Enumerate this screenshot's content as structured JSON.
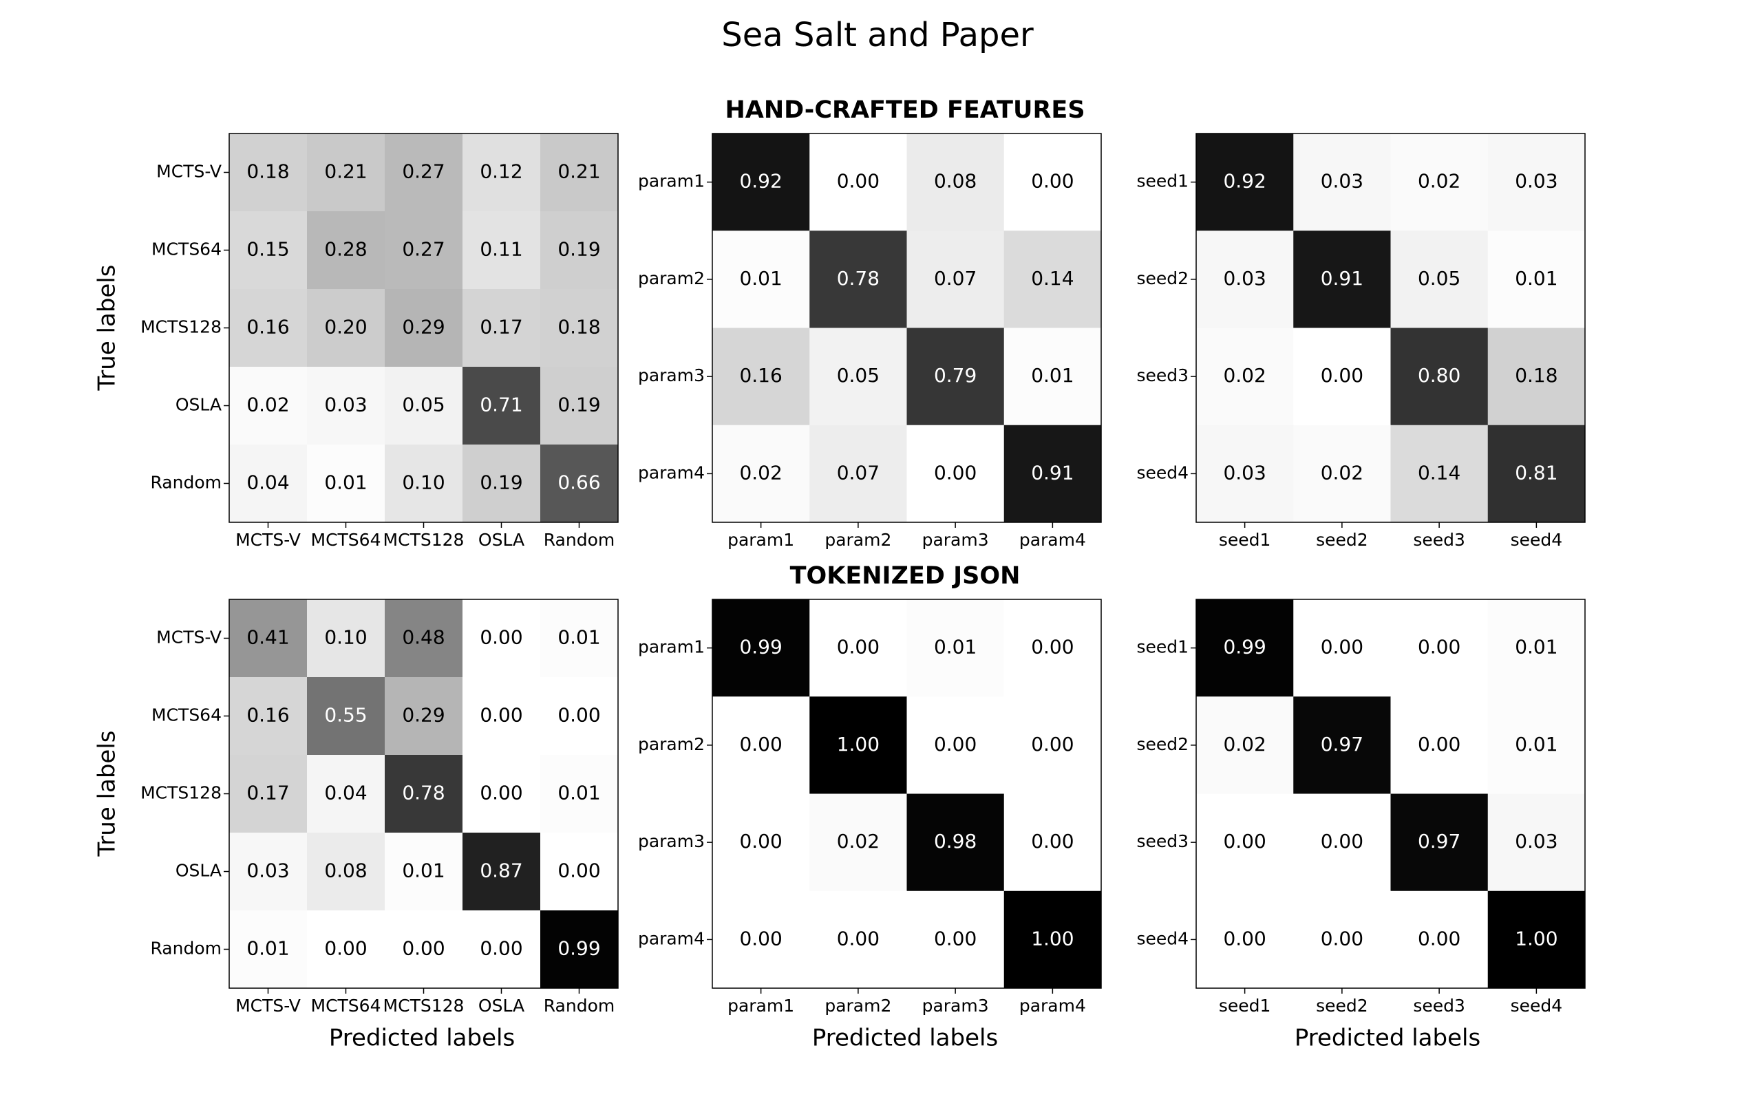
{
  "figure": {
    "title": "Sea Salt and Paper",
    "row_titles": [
      "HAND-CRAFTED FEATURES",
      "TOKENIZED JSON"
    ],
    "xlabel": "Predicted labels",
    "ylabel": "True labels"
  },
  "chart_data": [
    {
      "type": "heatmap",
      "row": 0,
      "col": 0,
      "colormap": "greys",
      "x_labels": [
        "MCTS-V",
        "MCTS64",
        "MCTS128",
        "OSLA",
        "Random"
      ],
      "y_labels": [
        "MCTS-V",
        "MCTS64",
        "MCTS128",
        "OSLA",
        "Random"
      ],
      "values": [
        [
          0.18,
          0.21,
          0.27,
          0.12,
          0.21
        ],
        [
          0.15,
          0.28,
          0.27,
          0.11,
          0.19
        ],
        [
          0.16,
          0.2,
          0.29,
          0.17,
          0.18
        ],
        [
          0.02,
          0.03,
          0.05,
          0.71,
          0.19
        ],
        [
          0.04,
          0.01,
          0.1,
          0.19,
          0.66
        ]
      ]
    },
    {
      "type": "heatmap",
      "row": 0,
      "col": 1,
      "colormap": "greys",
      "x_labels": [
        "param1",
        "param2",
        "param3",
        "param4"
      ],
      "y_labels": [
        "param1",
        "param2",
        "param3",
        "param4"
      ],
      "values": [
        [
          0.92,
          0.0,
          0.08,
          0.0
        ],
        [
          0.01,
          0.78,
          0.07,
          0.14
        ],
        [
          0.16,
          0.05,
          0.79,
          0.01
        ],
        [
          0.02,
          0.07,
          0.0,
          0.91
        ]
      ]
    },
    {
      "type": "heatmap",
      "row": 0,
      "col": 2,
      "colormap": "greys",
      "x_labels": [
        "seed1",
        "seed2",
        "seed3",
        "seed4"
      ],
      "y_labels": [
        "seed1",
        "seed2",
        "seed3",
        "seed4"
      ],
      "values": [
        [
          0.92,
          0.03,
          0.02,
          0.03
        ],
        [
          0.03,
          0.91,
          0.05,
          0.01
        ],
        [
          0.02,
          0.0,
          0.8,
          0.18
        ],
        [
          0.03,
          0.02,
          0.14,
          0.81
        ]
      ]
    },
    {
      "type": "heatmap",
      "row": 1,
      "col": 0,
      "colormap": "greys",
      "x_labels": [
        "MCTS-V",
        "MCTS64",
        "MCTS128",
        "OSLA",
        "Random"
      ],
      "y_labels": [
        "MCTS-V",
        "MCTS64",
        "MCTS128",
        "OSLA",
        "Random"
      ],
      "values": [
        [
          0.41,
          0.1,
          0.48,
          0.0,
          0.01
        ],
        [
          0.16,
          0.55,
          0.29,
          0.0,
          0.0
        ],
        [
          0.17,
          0.04,
          0.78,
          0.0,
          0.01
        ],
        [
          0.03,
          0.08,
          0.01,
          0.87,
          0.0
        ],
        [
          0.01,
          0.0,
          0.0,
          0.0,
          0.99
        ]
      ]
    },
    {
      "type": "heatmap",
      "row": 1,
      "col": 1,
      "colormap": "greys",
      "x_labels": [
        "param1",
        "param2",
        "param3",
        "param4"
      ],
      "y_labels": [
        "param1",
        "param2",
        "param3",
        "param4"
      ],
      "values": [
        [
          0.99,
          0.0,
          0.01,
          0.0
        ],
        [
          0.0,
          1.0,
          0.0,
          0.0
        ],
        [
          0.0,
          0.02,
          0.98,
          0.0
        ],
        [
          0.0,
          0.0,
          0.0,
          1.0
        ]
      ]
    },
    {
      "type": "heatmap",
      "row": 1,
      "col": 2,
      "colormap": "greys",
      "x_labels": [
        "seed1",
        "seed2",
        "seed3",
        "seed4"
      ],
      "y_labels": [
        "seed1",
        "seed2",
        "seed3",
        "seed4"
      ],
      "values": [
        [
          0.99,
          0.0,
          0.0,
          0.01
        ],
        [
          0.02,
          0.97,
          0.0,
          0.01
        ],
        [
          0.0,
          0.0,
          0.97,
          0.03
        ],
        [
          0.0,
          0.0,
          0.0,
          1.0
        ]
      ]
    }
  ]
}
